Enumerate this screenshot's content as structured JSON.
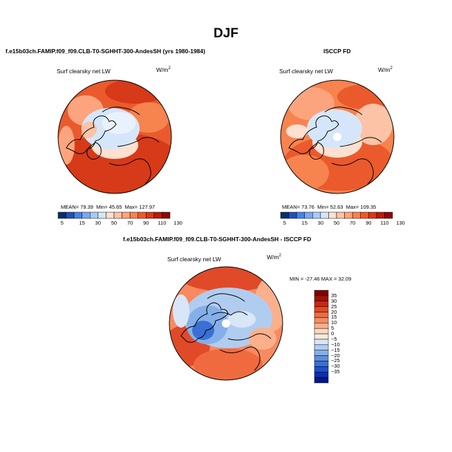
{
  "page": {
    "title": "DJF",
    "units_text": "W/m",
    "units_sup": "2"
  },
  "chart_data": [
    {
      "type": "heatmap",
      "projection": "north-polar-stereographic",
      "panel_title": "f.e15b03ch.FAMIP.f09_f09.CLB-T0-SGHHT-300-AndesSH (yrs 1980-1984)",
      "variable": "Surf clearsky net LW",
      "units": "W/m^2",
      "stats": {
        "mean_label": "MEAN=",
        "mean": "79.39",
        "min_label": "Min=",
        "min": "45.65",
        "max_label": "Max=",
        "max": "127.97"
      },
      "colorbar": {
        "levels": [
          "5",
          "15",
          "30",
          "50",
          "70",
          "90",
          "110",
          "130"
        ],
        "colors": [
          "#08306b",
          "#2250b8",
          "#4a83e0",
          "#7aa8ee",
          "#a9cbf5",
          "#d5e6fa",
          "#fde0d0",
          "#fcc3a6",
          "#fca47d",
          "#f7834f",
          "#ea5a2d",
          "#d63a18",
          "#b41d0c",
          "#8b0a06"
        ]
      },
      "regions": {
        "arctic_ocean": "light-blue",
        "north_atlantic": "orange",
        "siberia": "red",
        "north_america": "orange-red"
      }
    },
    {
      "type": "heatmap",
      "projection": "north-polar-stereographic",
      "panel_title": "ISCCP FD",
      "variable": "Surf clearsky net LW",
      "units": "W/m^2",
      "stats": {
        "mean_label": "MEAN=",
        "mean": "73.76",
        "min_label": "Min=",
        "min": "52.63",
        "max_label": "Max=",
        "max": "109.35"
      },
      "colorbar": {
        "levels": [
          "5",
          "15",
          "30",
          "50",
          "70",
          "90",
          "110",
          "130"
        ],
        "colors": [
          "#08306b",
          "#2250b8",
          "#4a83e0",
          "#7aa8ee",
          "#a9cbf5",
          "#d5e6fa",
          "#fde0d0",
          "#fcc3a6",
          "#fca47d",
          "#f7834f",
          "#ea5a2d",
          "#d63a18",
          "#b41d0c",
          "#8b0a06"
        ]
      },
      "regions": {
        "arctic_ocean": "light-blue",
        "north_atlantic": "light-orange",
        "siberia": "orange",
        "north_america": "orange"
      }
    },
    {
      "type": "heatmap",
      "projection": "north-polar-stereographic",
      "panel_title": "f.e15b03ch.FAMIP.f09_f09.CLB-T0-SGHHT-300-AndesSH - ISCCP FD",
      "variable": "Surf clearsky net LW",
      "units": "W/m^2",
      "stats": {
        "min_label": "MIN =",
        "min": "-27.46",
        "max_label": "MAX =",
        "max": "32.09"
      },
      "colorbar": {
        "orientation": "vertical",
        "levels": [
          "35",
          "30",
          "25",
          "20",
          "15",
          "10",
          "5",
          "0",
          "−5",
          "−10",
          "−15",
          "−20",
          "−25",
          "−30",
          "−35"
        ],
        "colors": [
          "#7f0000",
          "#a3100a",
          "#c42a15",
          "#e04a28",
          "#f06a40",
          "#f88a60",
          "#fbb08c",
          "#fdd7c0",
          "#fbeadc",
          "#d9e6f7",
          "#b0cdf0",
          "#85afe8",
          "#5a8ee0",
          "#3a6fd6",
          "#1f50c8",
          "#0a30b0",
          "#00168c"
        ]
      },
      "regions": {
        "arctic_ocean": "light-blue",
        "canadian_archipelago": "blue",
        "north_atlantic": "orange-red",
        "siberia": "red"
      }
    }
  ]
}
